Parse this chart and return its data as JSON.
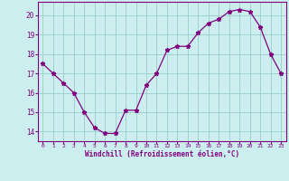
{
  "x": [
    0,
    1,
    2,
    3,
    4,
    5,
    6,
    7,
    8,
    9,
    10,
    11,
    12,
    13,
    14,
    15,
    16,
    17,
    18,
    19,
    20,
    21,
    22,
    23
  ],
  "y": [
    17.5,
    17.0,
    16.5,
    16.0,
    15.0,
    14.2,
    13.9,
    13.9,
    15.1,
    15.1,
    16.4,
    17.0,
    18.2,
    18.4,
    18.4,
    19.1,
    19.6,
    19.8,
    20.2,
    20.3,
    20.2,
    19.4,
    18.0,
    17.0
  ],
  "line_color": "#800080",
  "marker": "*",
  "bg_color": "#cceeee",
  "grid_color": "#99cccc",
  "tick_color": "#800080",
  "xlabel": "Windchill (Refroidissement éolien,°C)",
  "xlabel_color": "#800080",
  "ylim": [
    13.5,
    20.7
  ],
  "yticks": [
    14,
    15,
    16,
    17,
    18,
    19,
    20
  ],
  "xtick_labels": [
    "0",
    "1",
    "2",
    "3",
    "4",
    "5",
    "6",
    "7",
    "8",
    "9",
    "10",
    "11",
    "12",
    "13",
    "14",
    "15",
    "16",
    "17",
    "18",
    "19",
    "20",
    "21",
    "22",
    "23"
  ],
  "font_family": "monospace"
}
